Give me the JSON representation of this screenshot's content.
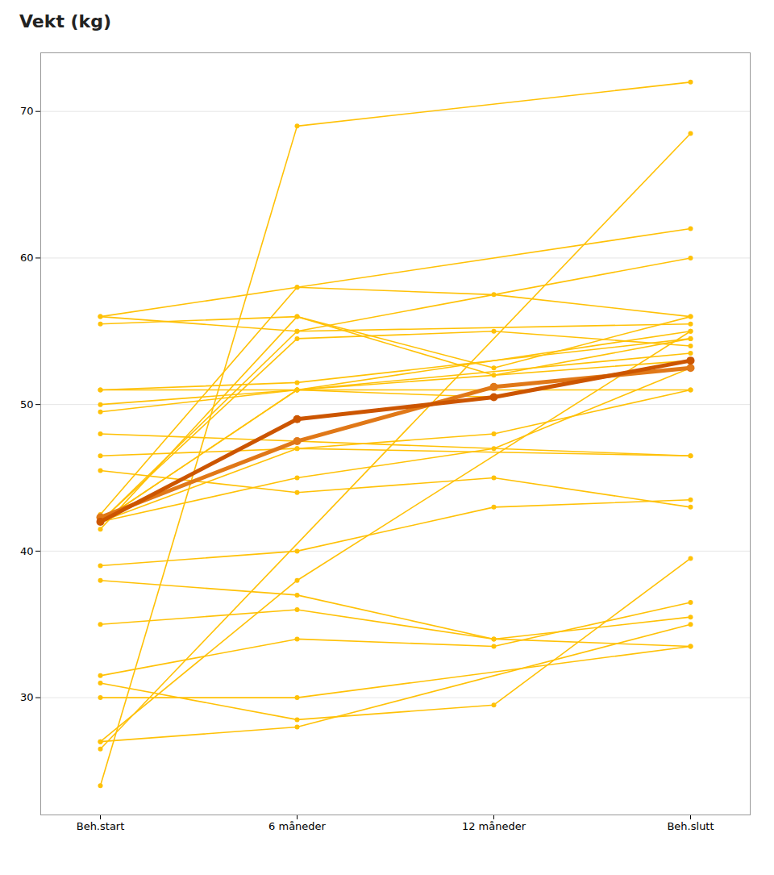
{
  "chart_data": {
    "type": "line",
    "title": "Vekt (kg)",
    "categories": [
      "Beh.start",
      "6 måneder",
      "12 måneder",
      "Beh.slutt"
    ],
    "ylim": [
      22,
      74
    ],
    "yticks": [
      30,
      40,
      50,
      60,
      70
    ],
    "grid": true,
    "marker": "circle",
    "series": [
      {
        "color": "#FFC107",
        "values": [
          42.0,
          51.0,
          null,
          53.0
        ]
      },
      {
        "color": "#FFC107",
        "values": [
          42.0,
          55.0,
          null,
          55.5
        ]
      },
      {
        "color": "#FFC107",
        "values": [
          42.5,
          58.0,
          57.5,
          56.0
        ]
      },
      {
        "color": "#FFC107",
        "values": [
          41.5,
          56.0,
          52.0,
          54.5
        ]
      },
      {
        "color": "#FFC107",
        "values": [
          42.0,
          54.5,
          55.0,
          54.0
        ]
      },
      {
        "color": "#FFC107",
        "values": [
          42.0,
          51.0,
          50.5,
          53.0
        ]
      },
      {
        "color": "#FFC107",
        "values": [
          42.0,
          47.0,
          48.0,
          51.0
        ]
      },
      {
        "color": "#FFC107",
        "values": [
          42.0,
          45.0,
          47.0,
          52.5
        ]
      },
      {
        "color": "#FFC107",
        "values": [
          55.5,
          56.0,
          52.5,
          56.0
        ]
      },
      {
        "color": "#FFC107",
        "values": [
          56.0,
          58.0,
          null,
          62.0
        ]
      },
      {
        "color": "#FFC107",
        "values": [
          56.0,
          55.0,
          null,
          60.0
        ]
      },
      {
        "color": "#FFC107",
        "values": [
          51.0,
          51.0,
          null,
          55.0
        ]
      },
      {
        "color": "#FFC107",
        "values": [
          51.0,
          51.5,
          null,
          54.5
        ]
      },
      {
        "color": "#FFC107",
        "values": [
          50.0,
          51.0,
          null,
          53.5
        ]
      },
      {
        "color": "#FFC107",
        "values": [
          49.5,
          51.0,
          null,
          51.0
        ]
      },
      {
        "color": "#FFC107",
        "values": [
          48.0,
          null,
          null,
          46.5
        ]
      },
      {
        "color": "#FFC107",
        "values": [
          46.5,
          47.0,
          null,
          46.5
        ]
      },
      {
        "color": "#FFC107",
        "values": [
          45.5,
          44.0,
          45.0,
          43.0
        ]
      },
      {
        "color": "#FFC107",
        "values": [
          39.0,
          40.0,
          43.0,
          43.5
        ]
      },
      {
        "color": "#FFC107",
        "values": [
          38.0,
          37.0,
          34.0,
          35.5
        ]
      },
      {
        "color": "#FFC107",
        "values": [
          35.0,
          36.0,
          34.0,
          33.5
        ]
      },
      {
        "color": "#FFC107",
        "values": [
          31.5,
          34.0,
          33.5,
          36.5
        ]
      },
      {
        "color": "#FFC107",
        "values": [
          31.0,
          28.5,
          29.5,
          39.5
        ]
      },
      {
        "color": "#FFC107",
        "values": [
          30.0,
          30.0,
          null,
          33.5
        ]
      },
      {
        "color": "#FFC107",
        "values": [
          27.0,
          28.0,
          null,
          35.0
        ]
      },
      {
        "color": "#FFC107",
        "values": [
          27.0,
          38.0,
          null,
          55.0
        ]
      },
      {
        "color": "#FFC107",
        "values": [
          26.5,
          null,
          null,
          68.5
        ]
      },
      {
        "color": "#FFC107",
        "values": [
          24.0,
          69.0,
          null,
          72.0
        ]
      },
      {
        "color": "#CC5500",
        "values": [
          42.0,
          49.0,
          50.5,
          53.0
        ]
      },
      {
        "color": "#E07818",
        "values": [
          42.3,
          47.5,
          51.2,
          52.5
        ]
      }
    ]
  }
}
